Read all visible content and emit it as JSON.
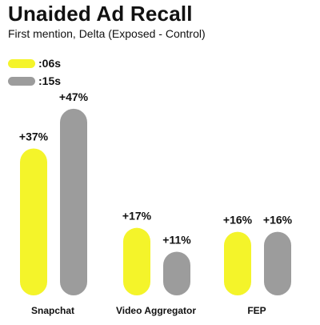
{
  "colors": {
    "series_0": "#f4f42a",
    "series_1": "#9c9c9c",
    "text": "#111111"
  },
  "chart_data": {
    "type": "bar",
    "title": "Unaided Ad Recall",
    "subtitle": "First mention, Delta (Exposed - Control)",
    "categories": [
      "Snapchat",
      "Video Aggregator",
      "FEP"
    ],
    "series": [
      {
        "name": ":06s",
        "values": [
          37,
          17,
          16
        ],
        "labels": [
          "+37%",
          "+17%",
          "+16%"
        ]
      },
      {
        "name": ":15s",
        "values": [
          47,
          11,
          16
        ],
        "labels": [
          "+47%",
          "+11%",
          "+16%"
        ]
      }
    ],
    "xlabel": "",
    "ylabel": "",
    "ylim": [
      0,
      50
    ],
    "grid": false,
    "legend": "top-left",
    "unit": "%"
  }
}
